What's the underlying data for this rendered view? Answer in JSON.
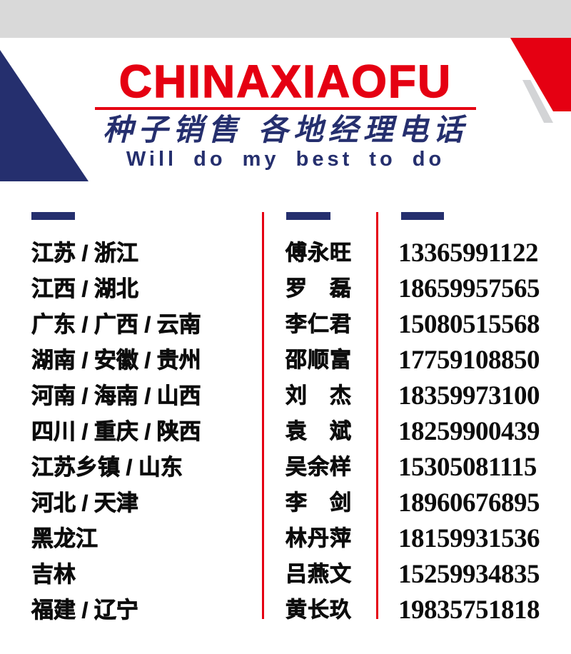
{
  "header": {
    "brand": "CHINAXIAOFU",
    "tagline_cn": "种子销售  各地经理电话",
    "tagline_en": "Will do my best to do"
  },
  "colors": {
    "navy": "#252f6e",
    "red": "#e50012",
    "gray_band": "#d9d9d9",
    "shadow_gray": "#d3d4d6",
    "text": "#0d0d0d"
  },
  "contacts": {
    "columns": [
      "region",
      "manager_name",
      "phone"
    ],
    "rows": [
      {
        "region": "江苏 / 浙江",
        "name": "傅永旺",
        "phone": "13365991122"
      },
      {
        "region": "江西 / 湖北",
        "name": "罗　磊",
        "phone": "18659957565"
      },
      {
        "region": "广东 / 广西 / 云南",
        "name": "李仁君",
        "phone": "15080515568"
      },
      {
        "region": "湖南 / 安徽 / 贵州",
        "name": "邵顺富",
        "phone": "17759108850"
      },
      {
        "region": "河南 / 海南 / 山西",
        "name": "刘　杰",
        "phone": "18359973100"
      },
      {
        "region": "四川 / 重庆 / 陕西",
        "name": "袁　斌",
        "phone": "18259900439"
      },
      {
        "region": "江苏乡镇 / 山东",
        "name": "吴余样",
        "phone": "15305081115"
      },
      {
        "region": "河北 / 天津",
        "name": "李　剑",
        "phone": "18960676895"
      },
      {
        "region": "黑龙江",
        "name": "林丹萍",
        "phone": "18159931536"
      },
      {
        "region": "吉林",
        "name": "吕燕文",
        "phone": "15259934835"
      },
      {
        "region": "福建 / 辽宁",
        "name": "黄长玖",
        "phone": "19835751818"
      }
    ]
  }
}
